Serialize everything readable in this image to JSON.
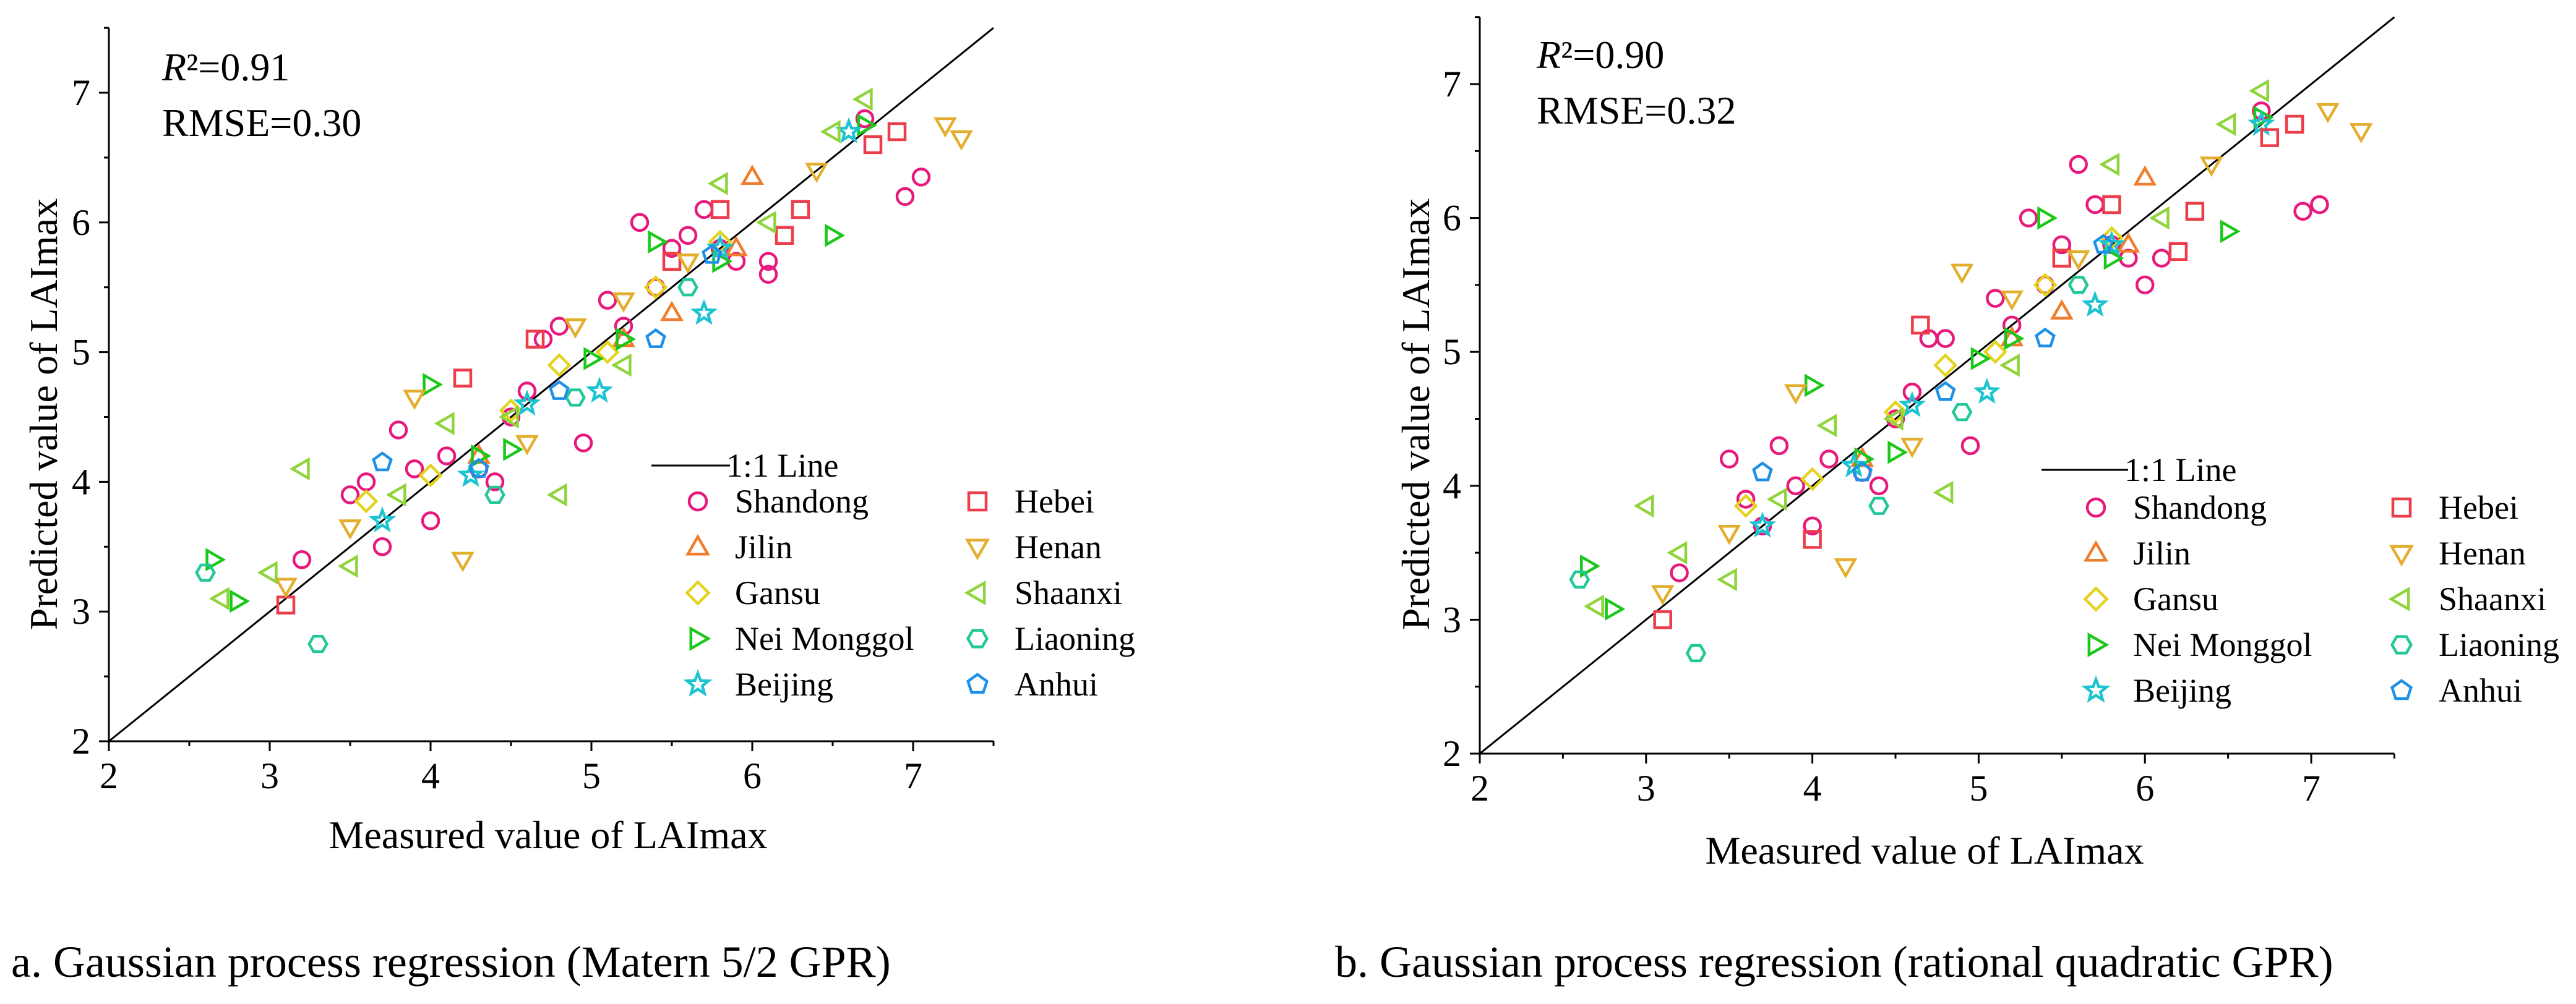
{
  "chart_data": [
    {
      "type": "scatter",
      "panel": "a",
      "caption": "a. Gaussian process regression (Matern 5/2 GPR)",
      "xlabel": "Measured value of LAImax",
      "ylabel": "Predicted value of LAImax",
      "xlim": [
        2,
        7.5
      ],
      "ylim": [
        2,
        7.5
      ],
      "xticks": [
        2,
        3,
        4,
        5,
        6,
        7
      ],
      "yticks": [
        2,
        3,
        4,
        5,
        6,
        7
      ],
      "r2_prefix": "R",
      "r2_value": "²=0.91",
      "rmse": "RMSE=0.30",
      "reference_line_label": "1:1 Line",
      "series": [
        {
          "name": "Shandong",
          "marker": "circle",
          "color": "#e8197d",
          "points": [
            [
              3.2,
              3.4
            ],
            [
              3.5,
              3.9
            ],
            [
              3.6,
              4.0
            ],
            [
              3.7,
              3.5
            ],
            [
              3.8,
              4.4
            ],
            [
              3.9,
              4.1
            ],
            [
              4.0,
              3.7
            ],
            [
              4.1,
              4.2
            ],
            [
              4.3,
              4.1
            ],
            [
              4.4,
              4.0
            ],
            [
              4.5,
              4.5
            ],
            [
              4.6,
              4.7
            ],
            [
              4.7,
              5.1
            ],
            [
              4.8,
              5.2
            ],
            [
              4.95,
              4.3
            ],
            [
              5.1,
              5.4
            ],
            [
              5.2,
              5.2
            ],
            [
              5.3,
              6.0
            ],
            [
              5.4,
              5.5
            ],
            [
              5.5,
              5.8
            ],
            [
              5.6,
              5.9
            ],
            [
              5.7,
              6.1
            ],
            [
              5.8,
              5.8
            ],
            [
              5.9,
              5.7
            ],
            [
              6.1,
              5.6
            ],
            [
              6.1,
              5.7
            ],
            [
              6.7,
              6.8
            ],
            [
              6.95,
              6.2
            ],
            [
              7.05,
              6.35
            ]
          ]
        },
        {
          "name": "Jilin",
          "marker": "triangle-up",
          "color": "#f07d2b",
          "points": [
            [
              4.3,
              4.2
            ],
            [
              5.2,
              5.1
            ],
            [
              5.5,
              5.3
            ],
            [
              5.9,
              5.8
            ],
            [
              6.0,
              6.35
            ]
          ]
        },
        {
          "name": "Gansu",
          "marker": "diamond",
          "color": "#e3d31c",
          "points": [
            [
              3.6,
              3.85
            ],
            [
              4.0,
              4.05
            ],
            [
              4.5,
              4.55
            ],
            [
              4.8,
              4.9
            ],
            [
              5.1,
              5.0
            ],
            [
              5.4,
              5.5
            ],
            [
              5.8,
              5.85
            ]
          ]
        },
        {
          "name": "Nei Monggol",
          "marker": "triangle-right",
          "color": "#19c819",
          "points": [
            [
              2.65,
              3.4
            ],
            [
              2.8,
              3.08
            ],
            [
              4.0,
              4.75
            ],
            [
              4.3,
              4.2
            ],
            [
              4.5,
              4.25
            ],
            [
              5.0,
              4.95
            ],
            [
              5.2,
              5.1
            ],
            [
              5.4,
              5.85
            ],
            [
              5.8,
              5.7
            ],
            [
              6.5,
              5.9
            ],
            [
              6.7,
              6.75
            ]
          ]
        },
        {
          "name": "Beijing",
          "marker": "star",
          "color": "#1cc3d0",
          "points": [
            [
              3.7,
              3.7
            ],
            [
              4.25,
              4.05
            ],
            [
              4.6,
              4.6
            ],
            [
              5.05,
              4.7
            ],
            [
              5.7,
              5.3
            ],
            [
              5.8,
              5.8
            ],
            [
              6.6,
              6.7
            ]
          ]
        },
        {
          "name": "Hebei",
          "marker": "square",
          "color": "#ec3d4a",
          "points": [
            [
              3.1,
              3.05
            ],
            [
              4.2,
              4.8
            ],
            [
              4.65,
              5.1
            ],
            [
              5.5,
              5.7
            ],
            [
              5.8,
              6.1
            ],
            [
              6.2,
              5.9
            ],
            [
              6.3,
              6.1
            ],
            [
              6.75,
              6.6
            ],
            [
              6.9,
              6.7
            ]
          ]
        },
        {
          "name": "Henan",
          "marker": "triangle-down",
          "color": "#e3ae2e",
          "points": [
            [
              3.1,
              3.2
            ],
            [
              3.5,
              3.65
            ],
            [
              3.9,
              4.65
            ],
            [
              4.2,
              3.4
            ],
            [
              4.6,
              4.3
            ],
            [
              4.9,
              5.2
            ],
            [
              5.2,
              5.4
            ],
            [
              5.6,
              5.7
            ],
            [
              6.4,
              6.4
            ],
            [
              7.2,
              6.75
            ],
            [
              7.3,
              6.65
            ]
          ]
        },
        {
          "name": "Shaanxi",
          "marker": "triangle-left",
          "color": "#8ed43a",
          "points": [
            [
              2.7,
              3.1
            ],
            [
              3.0,
              3.3
            ],
            [
              3.2,
              4.1
            ],
            [
              3.5,
              3.35
            ],
            [
              3.8,
              3.9
            ],
            [
              4.1,
              4.45
            ],
            [
              4.5,
              4.5
            ],
            [
              4.8,
              3.9
            ],
            [
              5.2,
              4.9
            ],
            [
              5.8,
              6.3
            ],
            [
              6.1,
              6.0
            ],
            [
              6.5,
              6.7
            ],
            [
              6.7,
              6.95
            ]
          ]
        },
        {
          "name": "Liaoning",
          "marker": "hexagon",
          "color": "#22c79a",
          "points": [
            [
              2.6,
              3.3
            ],
            [
              3.3,
              2.75
            ],
            [
              4.4,
              3.9
            ],
            [
              4.9,
              4.65
            ],
            [
              5.6,
              5.5
            ]
          ]
        },
        {
          "name": "Anhui",
          "marker": "pentagon",
          "color": "#1e90e8",
          "points": [
            [
              3.7,
              4.15
            ],
            [
              4.3,
              4.1
            ],
            [
              4.8,
              4.7
            ],
            [
              5.4,
              5.1
            ],
            [
              5.75,
              5.75
            ]
          ]
        }
      ]
    },
    {
      "type": "scatter",
      "panel": "b",
      "caption": "b. Gaussian process regression (rational quadratic GPR)",
      "xlabel": "Measured value of LAImax",
      "ylabel": "Predicted value of LAImax",
      "xlim": [
        2,
        7.5
      ],
      "ylim": [
        2,
        7.5
      ],
      "xticks": [
        2,
        3,
        4,
        5,
        6,
        7
      ],
      "yticks": [
        2,
        3,
        4,
        5,
        6,
        7
      ],
      "r2_prefix": "R",
      "r2_value": "²=0.90",
      "rmse": "RMSE=0.32",
      "reference_line_label": "1:1 Line",
      "series": [
        {
          "name": "Shandong",
          "marker": "circle",
          "color": "#e8197d",
          "points": [
            [
              3.2,
              3.35
            ],
            [
              3.5,
              4.2
            ],
            [
              3.6,
              3.9
            ],
            [
              3.7,
              3.7
            ],
            [
              3.8,
              4.3
            ],
            [
              3.9,
              4.0
            ],
            [
              4.0,
              3.7
            ],
            [
              4.1,
              4.2
            ],
            [
              4.3,
              4.1
            ],
            [
              4.4,
              4.0
            ],
            [
              4.5,
              4.5
            ],
            [
              4.6,
              4.7
            ],
            [
              4.7,
              5.1
            ],
            [
              4.8,
              5.1
            ],
            [
              4.95,
              4.3
            ],
            [
              5.1,
              5.4
            ],
            [
              5.2,
              5.2
            ],
            [
              5.3,
              6.0
            ],
            [
              5.4,
              5.5
            ],
            [
              5.5,
              5.8
            ],
            [
              5.6,
              6.4
            ],
            [
              5.7,
              6.1
            ],
            [
              5.8,
              5.8
            ],
            [
              5.9,
              5.7
            ],
            [
              6.0,
              5.5
            ],
            [
              6.1,
              5.7
            ],
            [
              6.7,
              6.8
            ],
            [
              6.95,
              6.05
            ],
            [
              7.05,
              6.1
            ]
          ]
        },
        {
          "name": "Jilin",
          "marker": "triangle-up",
          "color": "#f07d2b",
          "points": [
            [
              4.3,
              4.2
            ],
            [
              5.2,
              5.1
            ],
            [
              5.5,
              5.3
            ],
            [
              5.9,
              5.8
            ],
            [
              6.0,
              6.3
            ]
          ]
        },
        {
          "name": "Gansu",
          "marker": "diamond",
          "color": "#e3d31c",
          "points": [
            [
              3.6,
              3.85
            ],
            [
              4.0,
              4.05
            ],
            [
              4.5,
              4.55
            ],
            [
              4.8,
              4.9
            ],
            [
              5.1,
              5.0
            ],
            [
              5.4,
              5.5
            ],
            [
              5.8,
              5.85
            ]
          ]
        },
        {
          "name": "Nei Monggol",
          "marker": "triangle-right",
          "color": "#19c819",
          "points": [
            [
              2.65,
              3.4
            ],
            [
              2.8,
              3.08
            ],
            [
              4.0,
              4.75
            ],
            [
              4.3,
              4.2
            ],
            [
              4.5,
              4.25
            ],
            [
              5.0,
              4.95
            ],
            [
              5.2,
              5.1
            ],
            [
              5.4,
              6.0
            ],
            [
              5.8,
              5.7
            ],
            [
              6.5,
              5.9
            ],
            [
              6.7,
              6.75
            ]
          ]
        },
        {
          "name": "Beijing",
          "marker": "star",
          "color": "#1cc3d0",
          "points": [
            [
              3.7,
              3.7
            ],
            [
              4.25,
              4.15
            ],
            [
              4.6,
              4.6
            ],
            [
              5.05,
              4.7
            ],
            [
              5.7,
              5.35
            ],
            [
              5.8,
              5.8
            ],
            [
              6.7,
              6.7
            ]
          ]
        },
        {
          "name": "Hebei",
          "marker": "square",
          "color": "#ec3d4a",
          "points": [
            [
              3.1,
              3.0
            ],
            [
              4.0,
              3.6
            ],
            [
              4.65,
              5.2
            ],
            [
              5.5,
              5.7
            ],
            [
              5.8,
              6.1
            ],
            [
              6.2,
              5.75
            ],
            [
              6.3,
              6.05
            ],
            [
              6.75,
              6.6
            ],
            [
              6.9,
              6.7
            ]
          ]
        },
        {
          "name": "Henan",
          "marker": "triangle-down",
          "color": "#e3ae2e",
          "points": [
            [
              3.1,
              3.2
            ],
            [
              3.5,
              3.65
            ],
            [
              3.9,
              4.7
            ],
            [
              4.2,
              3.4
            ],
            [
              4.6,
              4.3
            ],
            [
              4.9,
              5.6
            ],
            [
              5.2,
              5.4
            ],
            [
              5.6,
              5.7
            ],
            [
              6.4,
              6.4
            ],
            [
              7.1,
              6.8
            ],
            [
              7.3,
              6.65
            ]
          ]
        },
        {
          "name": "Shaanxi",
          "marker": "triangle-left",
          "color": "#8ed43a",
          "points": [
            [
              2.7,
              3.1
            ],
            [
              3.0,
              3.85
            ],
            [
              3.2,
              3.5
            ],
            [
              3.5,
              3.3
            ],
            [
              3.8,
              3.9
            ],
            [
              4.1,
              4.45
            ],
            [
              4.5,
              4.5
            ],
            [
              4.8,
              3.95
            ],
            [
              5.2,
              4.9
            ],
            [
              5.8,
              6.4
            ],
            [
              6.1,
              6.0
            ],
            [
              6.5,
              6.7
            ],
            [
              6.7,
              6.95
            ]
          ]
        },
        {
          "name": "Liaoning",
          "marker": "hexagon",
          "color": "#22c79a",
          "points": [
            [
              2.6,
              3.3
            ],
            [
              3.3,
              2.75
            ],
            [
              4.4,
              3.85
            ],
            [
              4.9,
              4.55
            ],
            [
              5.6,
              5.5
            ]
          ]
        },
        {
          "name": "Anhui",
          "marker": "pentagon",
          "color": "#1e90e8",
          "points": [
            [
              3.7,
              4.1
            ],
            [
              4.3,
              4.1
            ],
            [
              4.8,
              4.7
            ],
            [
              5.4,
              5.1
            ],
            [
              5.75,
              5.8
            ]
          ]
        }
      ]
    }
  ]
}
